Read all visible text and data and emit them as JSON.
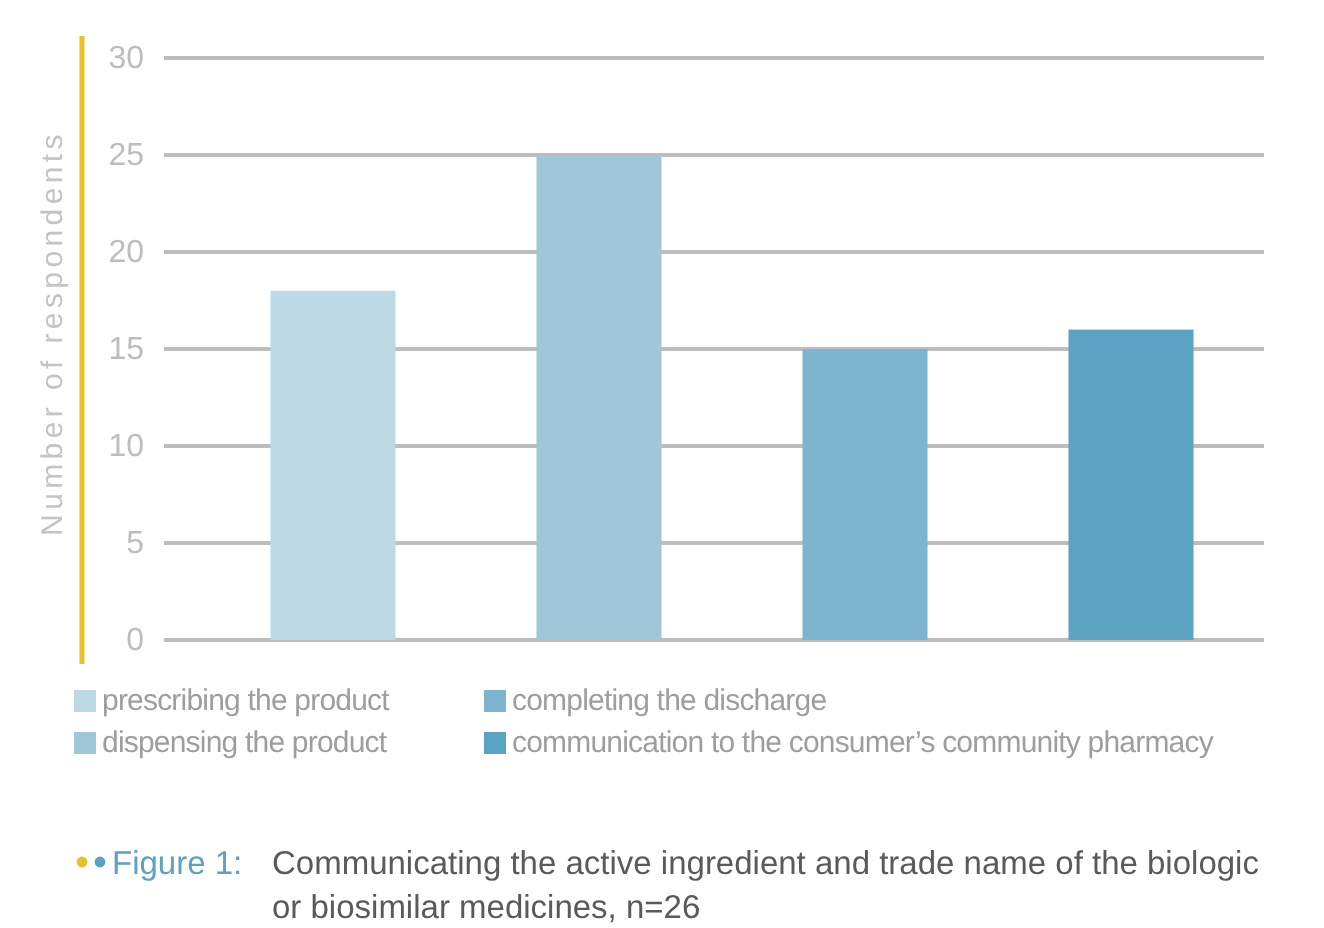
{
  "chart_data": {
    "type": "bar",
    "title": "Figure 1: Communicating the active ingredient and trade name of the biologic or biosimilar medicines, n=26",
    "ylabel": "Number of respondents",
    "categories": [
      null,
      null,
      null,
      null
    ],
    "series": [
      {
        "name": "prescribing the product",
        "color": "#bed9e6",
        "values": [
          18,
          null,
          null,
          null
        ]
      },
      {
        "name": "dispensing the product",
        "color": "#9fc6d9",
        "values": [
          null,
          25,
          null,
          null
        ]
      },
      {
        "name": "completing the discharge",
        "color": "#7db4cf",
        "values": [
          null,
          null,
          15,
          null
        ]
      },
      {
        "name": "communication to the consumer’s community pharmacy",
        "color": "#5ca2c2",
        "values": [
          null,
          null,
          null,
          16
        ]
      }
    ],
    "ylim": [
      0,
      30
    ],
    "yticks": [
      0,
      5,
      10,
      15,
      20,
      25,
      30
    ],
    "grid": "y",
    "legend": "bottom"
  }
}
